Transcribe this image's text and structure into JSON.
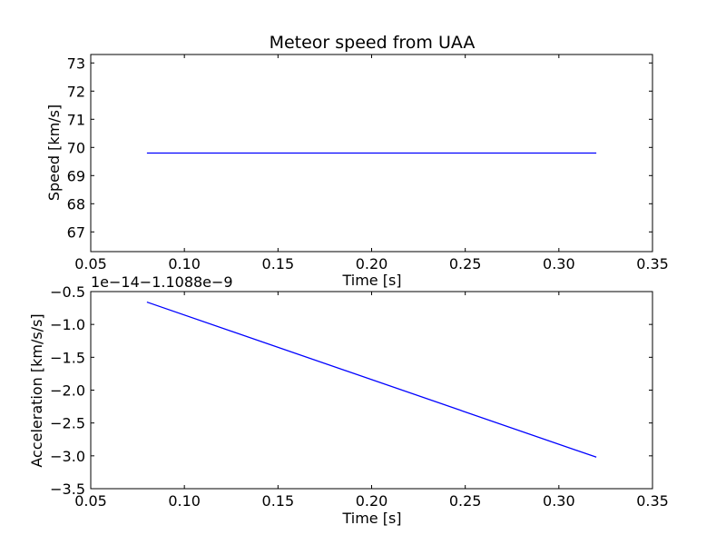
{
  "chart_data": [
    {
      "type": "line",
      "title": "Meteor speed from  UAA",
      "xlabel": "Time [s]",
      "ylabel": "Speed [km/s]",
      "xlim": [
        0.05,
        0.35
      ],
      "ylim": [
        66.3,
        73.3
      ],
      "xticks": [
        "0.05",
        "0.10",
        "0.15",
        "0.20",
        "0.25",
        "0.30",
        "0.35"
      ],
      "yticks": [
        "67",
        "68",
        "69",
        "70",
        "71",
        "72",
        "73"
      ],
      "grid": false,
      "color": "#0000ff",
      "series": [
        {
          "x": [
            0.08,
            0.32
          ],
          "y": [
            69.8,
            69.8
          ]
        }
      ]
    },
    {
      "type": "line",
      "title": "",
      "xlabel": "Time [s]",
      "ylabel": "Acceleration [km/s/s]",
      "offset_text": "1e−14−1.1088e−9",
      "xlim": [
        0.05,
        0.35
      ],
      "ylim": [
        -3.5,
        -0.5
      ],
      "xticks": [
        "0.05",
        "0.10",
        "0.15",
        "0.20",
        "0.25",
        "0.30",
        "0.35"
      ],
      "yticks": [
        "−0.5",
        "−1.0",
        "−1.5",
        "−2.0",
        "−2.5",
        "−3.0",
        "−3.5"
      ],
      "grid": false,
      "color": "#0000ff",
      "series": [
        {
          "x": [
            0.08,
            0.32
          ],
          "y": [
            -0.66,
            -3.02
          ]
        }
      ]
    }
  ]
}
